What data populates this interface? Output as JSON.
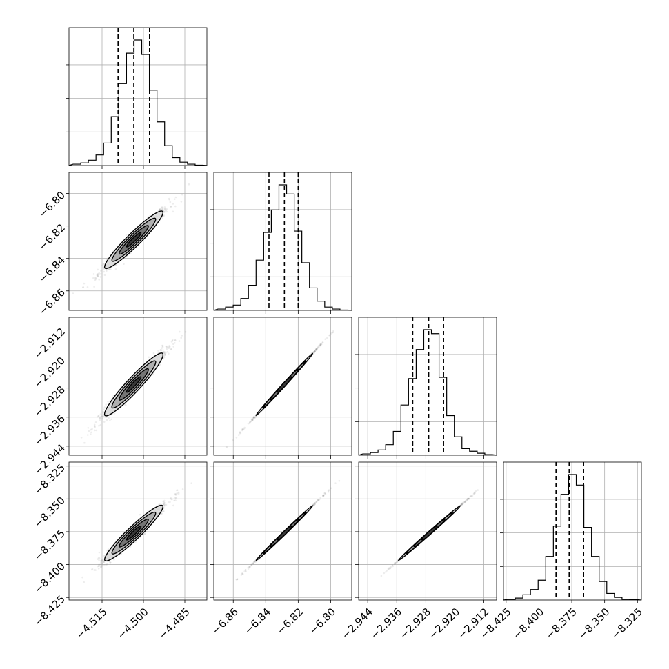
{
  "chart_data": {
    "type": "corner",
    "grid": true,
    "colors": {
      "line": "#000000",
      "grid": "#b0b0b0",
      "points": "#6e6e6e",
      "contour_fill": "#3a3a3a"
    },
    "parameters": [
      {
        "index": 0,
        "range": [
          -4.527,
          -4.477
        ],
        "mean": -4.5035,
        "sigma": 0.0055,
        "quantiles": [
          -4.5092,
          -4.5035,
          -4.4978
        ],
        "ticks": [
          -4.515,
          -4.5,
          -4.485
        ],
        "tick_labels": [
          "−4.515",
          "−4.500",
          "−4.485"
        ]
      },
      {
        "index": 1,
        "range": [
          -6.872,
          -6.787
        ],
        "mean": -6.8285,
        "sigma": 0.0092,
        "quantiles": [
          -6.838,
          -6.8285,
          -6.82
        ],
        "ticks": [
          -6.86,
          -6.84,
          -6.82,
          -6.8
        ],
        "tick_labels": [
          "−6.86",
          "−6.84",
          "−6.82",
          "−6.80"
        ]
      },
      {
        "index": 2,
        "range": [
          -2.9465,
          -2.9085
        ],
        "mean": -2.927,
        "sigma": 0.0045,
        "quantiles": [
          -2.9316,
          -2.9272,
          -2.9231
        ],
        "ticks": [
          -2.944,
          -2.936,
          -2.928,
          -2.92,
          -2.912
        ],
        "tick_labels": [
          "−2.944",
          "−2.936",
          "−2.928",
          "−2.920",
          "−2.912"
        ]
      },
      {
        "index": 3,
        "range": [
          -8.427,
          -8.322
        ],
        "mean": -8.376,
        "sigma": 0.011,
        "quantiles": [
          -8.387,
          -8.377,
          -8.366
        ],
        "ticks": [
          -8.425,
          -8.4,
          -8.375,
          -8.35,
          -8.325
        ],
        "tick_labels": [
          "−8.425",
          "−8.400",
          "−8.375",
          "−8.350",
          "−8.325"
        ]
      }
    ],
    "histograms": [
      {
        "param": 0,
        "counts": [
          1,
          2,
          4,
          8,
          17,
          37,
          62,
          85,
          95,
          84,
          57,
          33,
          15,
          6,
          2.5,
          1,
          0.3
        ]
      },
      {
        "param": 1,
        "counts": [
          1,
          2.5,
          4,
          9,
          19,
          38,
          59,
          76,
          95,
          88,
          60,
          36,
          17,
          7,
          2.5,
          1,
          0.3
        ]
      },
      {
        "param": 2,
        "counts": [
          1,
          2,
          4,
          8,
          18,
          38,
          58,
          80,
          95,
          92,
          59,
          30,
          14,
          5,
          3,
          1.5,
          0.5
        ]
      },
      {
        "param": 3,
        "counts": [
          0.5,
          1.5,
          4,
          8,
          15,
          33,
          56,
          80,
          95,
          87,
          55,
          33,
          14,
          5,
          2,
          0.5,
          0.3
        ]
      }
    ],
    "correlations": [
      {
        "x": 0,
        "y": 1,
        "rho": 0.97
      },
      {
        "x": 0,
        "y": 2,
        "rho": 0.97
      },
      {
        "x": 0,
        "y": 3,
        "rho": 0.97
      },
      {
        "x": 1,
        "y": 2,
        "rho": 0.9995
      },
      {
        "x": 1,
        "y": 3,
        "rho": 0.9995
      },
      {
        "x": 2,
        "y": 3,
        "rho": 0.9995
      }
    ]
  }
}
